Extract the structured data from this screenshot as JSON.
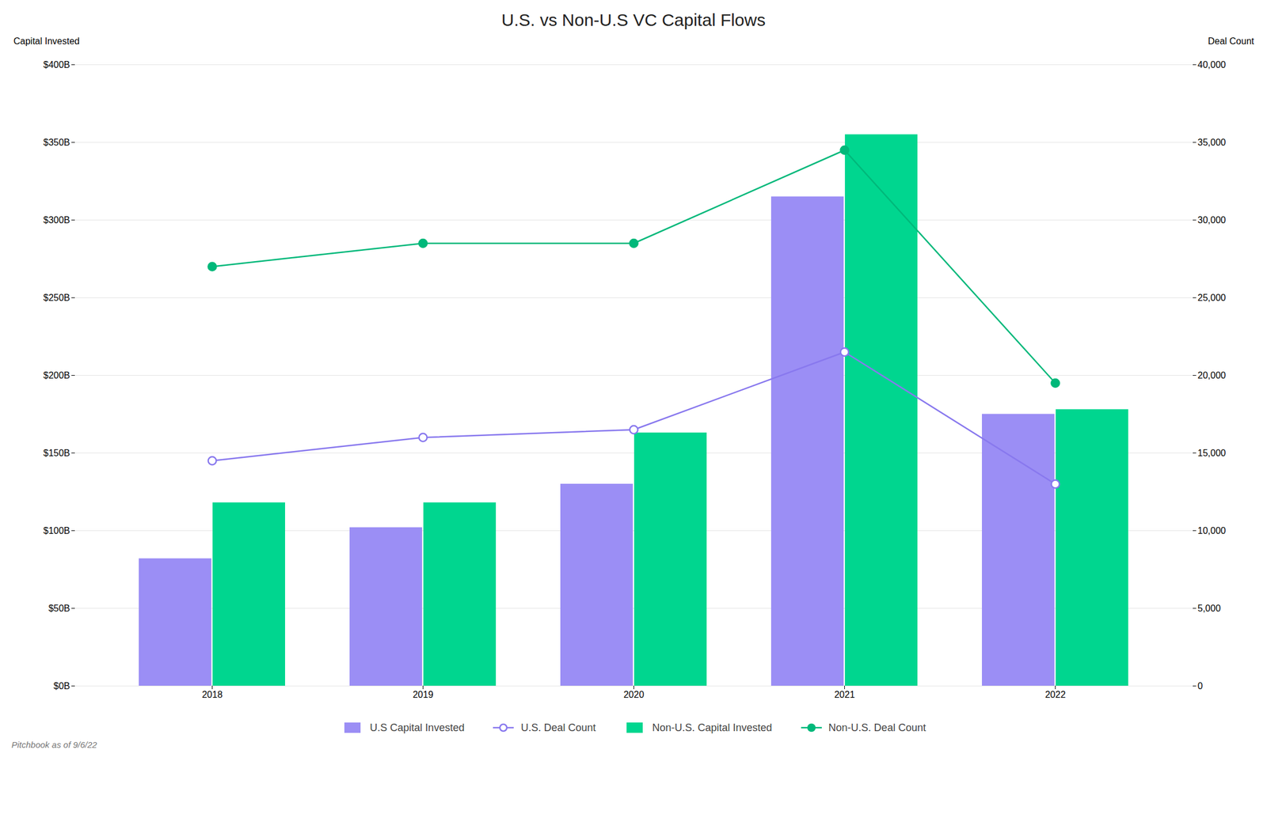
{
  "chart_data": {
    "type": "bar",
    "title": "U.S. vs Non-U.S VC Capital Flows",
    "categories": [
      "2018",
      "2019",
      "2020",
      "2021",
      "2022"
    ],
    "series": [
      {
        "name": "U.S Capital Invested",
        "type": "bar",
        "color": "#9b8ef5",
        "values": [
          82,
          102,
          130,
          315,
          175
        ]
      },
      {
        "name": "U.S. Deal Count",
        "type": "line",
        "axis": "y2",
        "color": "#8878ee",
        "marker": "open_circle",
        "values": [
          14500,
          16000,
          16500,
          21500,
          13000
        ]
      },
      {
        "name": "Non-U.S. Capital Invested",
        "type": "bar",
        "color": "#00d68f",
        "values": [
          118,
          118,
          163,
          355,
          178
        ]
      },
      {
        "name": "Non-U.S. Deal Count",
        "type": "line",
        "axis": "y2",
        "color": "#00b87a",
        "marker": "circle",
        "values": [
          27000,
          28500,
          28500,
          34500,
          19500
        ]
      }
    ],
    "ylabel": "Capital Invested",
    "y2label": "Deal Count",
    "ylim": [
      0,
      400
    ],
    "yticks": [
      {
        "value": 0,
        "label": "$0B"
      },
      {
        "value": 50,
        "label": "$50B"
      },
      {
        "value": 100,
        "label": "$100B"
      },
      {
        "value": 150,
        "label": "$150B"
      },
      {
        "value": 200,
        "label": "$200B"
      },
      {
        "value": 250,
        "label": "$250B"
      },
      {
        "value": 300,
        "label": "$300B"
      },
      {
        "value": 350,
        "label": "$350B"
      },
      {
        "value": 400,
        "label": "$400B"
      }
    ],
    "y2lim": [
      0,
      40000
    ],
    "y2ticks": [
      0,
      {
        "value": 5000,
        "label": "5,000"
      },
      {
        "value": 10000,
        "label": "10,000"
      },
      {
        "value": 15000,
        "label": "15,000"
      },
      {
        "value": 20000,
        "label": "20,000"
      },
      {
        "value": 25000,
        "label": "25,000"
      },
      {
        "value": 30000,
        "label": "30,000"
      },
      {
        "value": 35000,
        "label": "35,000"
      },
      {
        "value": 40000,
        "label": "40,000"
      }
    ],
    "grid": true,
    "legend": "bottom",
    "footnote": "Pitchbook as of 9/6/22"
  }
}
